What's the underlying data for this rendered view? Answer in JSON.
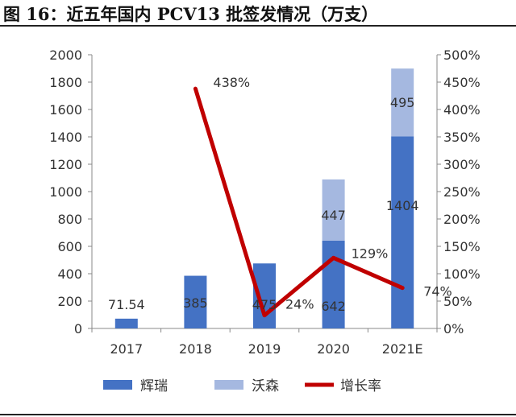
{
  "title": "图 16：近五年国内 PCV13 批签发情况（万支）",
  "chart_data": {
    "type": "bar",
    "categories": [
      "2017",
      "2018",
      "2019",
      "2020",
      "2021E"
    ],
    "series": [
      {
        "name": "辉瑞",
        "kind": "bar",
        "stack": "total",
        "color": "#4472C4",
        "values": [
          71.54,
          385,
          475,
          642,
          1404
        ],
        "labels": [
          "71.54",
          "385",
          "475",
          "642",
          "1404"
        ]
      },
      {
        "name": "沃森",
        "kind": "bar",
        "stack": "total",
        "color": "#A5B8E0",
        "values": [
          0,
          0,
          0,
          447,
          495
        ],
        "labels": [
          "",
          "",
          "",
          "447",
          "495"
        ]
      },
      {
        "name": "增长率",
        "kind": "line",
        "axis": "right",
        "color": "#C00000",
        "values": [
          null,
          438,
          24,
          129,
          74
        ],
        "labels": [
          "",
          "438%",
          "24%",
          "129%",
          "74%"
        ]
      }
    ],
    "y_left": {
      "min": 0,
      "max": 2000,
      "step": 200,
      "ticks": [
        "0",
        "200",
        "400",
        "600",
        "800",
        "1000",
        "1200",
        "1400",
        "1600",
        "1800",
        "2000"
      ]
    },
    "y_right": {
      "min": 0,
      "max": 500,
      "step": 50,
      "ticks": [
        "0%",
        "50%",
        "100%",
        "150%",
        "200%",
        "250%",
        "300%",
        "350%",
        "400%",
        "450%",
        "500%"
      ]
    },
    "legend": {
      "placement": "bottom",
      "items": [
        "辉瑞",
        "沃森",
        "增长率"
      ]
    },
    "grid": false
  }
}
